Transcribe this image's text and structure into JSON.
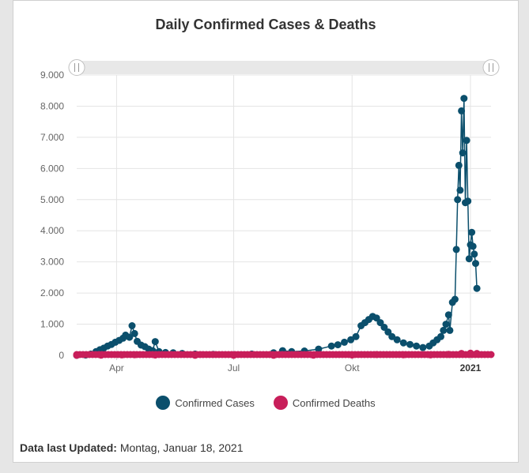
{
  "footer": {
    "label": "Data last Updated:",
    "value": "Montag, Januar 18, 2021"
  },
  "colors": {
    "cases": "#0b4f6c",
    "deaths": "#c81e5a",
    "grid": "#e4e4e4",
    "navigator": "#e8e8e8"
  },
  "chart_data": {
    "type": "line",
    "title": "Daily Confirmed Cases & Deaths",
    "xlabel": "",
    "ylabel": "",
    "ylim": [
      0,
      9000
    ],
    "yticks": [
      "0",
      "1.000",
      "2.000",
      "3.000",
      "4.000",
      "5.000",
      "6.000",
      "7.000",
      "8.000",
      "9.000"
    ],
    "xticks": [
      {
        "label": "Apr",
        "date": "2020-04-01"
      },
      {
        "label": "Jul",
        "date": "2020-07-01"
      },
      {
        "label": "Okt",
        "date": "2020-10-01"
      },
      {
        "label": "2021",
        "date": "2021-01-01",
        "bold": true
      }
    ],
    "xrange": [
      "2020-03-01",
      "2021-01-17"
    ],
    "grid": true,
    "legend_position": "bottom",
    "series": [
      {
        "name": "Confirmed Cases",
        "color": "#0b4f6c",
        "points": [
          [
            "2020-03-01",
            0
          ],
          [
            "2020-03-08",
            10
          ],
          [
            "2020-03-12",
            40
          ],
          [
            "2020-03-16",
            120
          ],
          [
            "2020-03-19",
            180
          ],
          [
            "2020-03-22",
            230
          ],
          [
            "2020-03-25",
            300
          ],
          [
            "2020-03-28",
            350
          ],
          [
            "2020-03-31",
            420
          ],
          [
            "2020-04-03",
            480
          ],
          [
            "2020-04-06",
            550
          ],
          [
            "2020-04-08",
            650
          ],
          [
            "2020-04-11",
            580
          ],
          [
            "2020-04-13",
            950
          ],
          [
            "2020-04-15",
            700
          ],
          [
            "2020-04-17",
            450
          ],
          [
            "2020-04-20",
            330
          ],
          [
            "2020-04-23",
            280
          ],
          [
            "2020-04-26",
            200
          ],
          [
            "2020-04-29",
            150
          ],
          [
            "2020-05-01",
            440
          ],
          [
            "2020-05-04",
            120
          ],
          [
            "2020-05-09",
            90
          ],
          [
            "2020-05-15",
            80
          ],
          [
            "2020-05-22",
            60
          ],
          [
            "2020-06-01",
            40
          ],
          [
            "2020-06-15",
            30
          ],
          [
            "2020-07-01",
            20
          ],
          [
            "2020-07-15",
            40
          ],
          [
            "2020-08-01",
            80
          ],
          [
            "2020-08-08",
            150
          ],
          [
            "2020-08-15",
            120
          ],
          [
            "2020-08-25",
            140
          ],
          [
            "2020-09-05",
            200
          ],
          [
            "2020-09-15",
            300
          ],
          [
            "2020-09-20",
            340
          ],
          [
            "2020-09-25",
            420
          ],
          [
            "2020-09-30",
            500
          ],
          [
            "2020-10-04",
            600
          ],
          [
            "2020-10-08",
            950
          ],
          [
            "2020-10-11",
            1050
          ],
          [
            "2020-10-14",
            1150
          ],
          [
            "2020-10-17",
            1250
          ],
          [
            "2020-10-20",
            1200
          ],
          [
            "2020-10-23",
            1050
          ],
          [
            "2020-10-26",
            900
          ],
          [
            "2020-10-29",
            750
          ],
          [
            "2020-11-01",
            600
          ],
          [
            "2020-11-05",
            500
          ],
          [
            "2020-11-10",
            400
          ],
          [
            "2020-11-15",
            350
          ],
          [
            "2020-11-20",
            300
          ],
          [
            "2020-11-25",
            250
          ],
          [
            "2020-11-30",
            300
          ],
          [
            "2020-12-03",
            400
          ],
          [
            "2020-12-06",
            500
          ],
          [
            "2020-12-09",
            600
          ],
          [
            "2020-12-11",
            800
          ],
          [
            "2020-12-13",
            1000
          ],
          [
            "2020-12-15",
            1300
          ],
          [
            "2020-12-16",
            800
          ],
          [
            "2020-12-18",
            1700
          ],
          [
            "2020-12-20",
            1800
          ],
          [
            "2020-12-21",
            3400
          ],
          [
            "2020-12-22",
            5000
          ],
          [
            "2020-12-23",
            6100
          ],
          [
            "2020-12-24",
            5300
          ],
          [
            "2020-12-25",
            7850
          ],
          [
            "2020-12-26",
            6500
          ],
          [
            "2020-12-27",
            8250
          ],
          [
            "2020-12-28",
            4900
          ],
          [
            "2020-12-29",
            6900
          ],
          [
            "2020-12-30",
            4950
          ],
          [
            "2020-12-31",
            3100
          ],
          [
            "2021-01-01",
            3550
          ],
          [
            "2021-01-02",
            3950
          ],
          [
            "2021-01-03",
            3500
          ],
          [
            "2021-01-04",
            3250
          ],
          [
            "2021-01-05",
            2950
          ],
          [
            "2021-01-06",
            2150
          ]
        ]
      },
      {
        "name": "Confirmed Deaths",
        "color": "#c81e5a",
        "points": [
          [
            "2020-03-01",
            0
          ],
          [
            "2020-03-20",
            5
          ],
          [
            "2020-04-05",
            15
          ],
          [
            "2020-04-15",
            20
          ],
          [
            "2020-05-01",
            10
          ],
          [
            "2020-06-01",
            3
          ],
          [
            "2020-07-01",
            2
          ],
          [
            "2020-08-01",
            3
          ],
          [
            "2020-09-01",
            5
          ],
          [
            "2020-10-01",
            10
          ],
          [
            "2020-10-20",
            25
          ],
          [
            "2020-11-10",
            20
          ],
          [
            "2020-12-01",
            15
          ],
          [
            "2020-12-15",
            30
          ],
          [
            "2020-12-25",
            60
          ],
          [
            "2021-01-01",
            70
          ],
          [
            "2021-01-06",
            60
          ]
        ]
      }
    ]
  }
}
